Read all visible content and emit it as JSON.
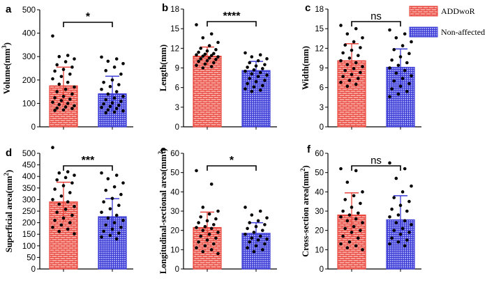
{
  "legend": {
    "items": [
      {
        "name": "ADDwoR",
        "pattern": "brick",
        "color": "#E8453C"
      },
      {
        "name": "Non-affected",
        "pattern": "grid",
        "color": "#3B3BD6"
      }
    ]
  },
  "chart_data": [
    {
      "panel": "a",
      "type": "bar",
      "ylabel": "Volume(mm³)",
      "ylabel_main": "Volume(mm",
      "ylabel_sup": "3",
      "ylabel_end": ")",
      "ylim": [
        0,
        500
      ],
      "yticks": [
        0,
        100,
        200,
        300,
        400,
        500
      ],
      "ytick_labels": [
        "0",
        "100",
        "200",
        "300",
        "400",
        "500"
      ],
      "significance": "*",
      "categories": [
        "ADDwoR",
        "Non-affected"
      ],
      "values": [
        175,
        141
      ],
      "sd": [
        80,
        75
      ],
      "points": [
        [
          388,
          305,
          300,
          290,
          278,
          265,
          255,
          245,
          238,
          225,
          215,
          205,
          190,
          182,
          170,
          160,
          150,
          140,
          130,
          124,
          118,
          112,
          105,
          100,
          95,
          90,
          85,
          80,
          78,
          72,
          70
        ],
        [
          298,
          290,
          280,
          270,
          255,
          240,
          225,
          200,
          190,
          180,
          172,
          160,
          150,
          140,
          130,
          123,
          116,
          109,
          102,
          98,
          92,
          87,
          83,
          78,
          72,
          68,
          63,
          60
        ]
      ]
    },
    {
      "panel": "b",
      "type": "bar",
      "ylabel": "Length(mm)",
      "ylabel_main": "Length(mm)",
      "ylabel_sup": "",
      "ylabel_end": "",
      "ylim": [
        0,
        18
      ],
      "yticks": [
        0,
        3,
        6,
        9,
        12,
        15,
        18
      ],
      "ytick_labels": [
        "0",
        "3",
        "6",
        "9",
        "12",
        "15",
        "18"
      ],
      "significance": "****",
      "categories": [
        "ADDwoR",
        "Non-affected"
      ],
      "values": [
        10.8,
        8.6
      ],
      "sd": [
        1.4,
        1.4
      ],
      "points": [
        [
          15.6,
          14.2,
          13.6,
          12.9,
          12.4,
          12.0,
          11.8,
          11.6,
          11.4,
          11.2,
          11.1,
          11.0,
          10.9,
          10.8,
          10.7,
          10.5,
          10.4,
          10.3,
          10.1,
          10.0,
          9.8,
          9.6,
          9.4,
          9.2,
          9.0
        ],
        [
          11.3,
          11.0,
          10.7,
          10.4,
          10.1,
          9.8,
          9.5,
          9.3,
          9.1,
          8.9,
          8.7,
          8.5,
          8.3,
          8.1,
          7.9,
          7.7,
          7.4,
          7.1,
          6.9,
          6.6,
          6.3,
          6.1,
          5.8,
          5.6,
          5.4
        ]
      ]
    },
    {
      "panel": "c",
      "type": "bar",
      "ylabel": "Width(mm)",
      "ylabel_main": "Width(mm)",
      "ylabel_sup": "",
      "ylabel_end": "",
      "ylim": [
        0,
        18
      ],
      "yticks": [
        0,
        3,
        6,
        9,
        12,
        15,
        18
      ],
      "ytick_labels": [
        "0",
        "3",
        "6",
        "9",
        "12",
        "15",
        "18"
      ],
      "significance": "ns",
      "categories": [
        "ADDwoR",
        "Non-affected"
      ],
      "values": [
        10.1,
        9.1
      ],
      "sd": [
        2.6,
        2.8
      ],
      "points": [
        [
          15.5,
          15.0,
          14.2,
          13.6,
          13.0,
          12.5,
          12.1,
          11.7,
          11.3,
          10.9,
          10.5,
          10.1,
          9.8,
          9.5,
          9.2,
          8.9,
          8.6,
          8.3,
          8.0,
          7.7,
          7.4,
          7.1,
          6.8,
          6.5,
          6.2
        ],
        [
          14.8,
          14.2,
          13.6,
          13.0,
          12.4,
          11.8,
          11.2,
          10.7,
          10.2,
          9.8,
          9.4,
          9.0,
          8.6,
          8.2,
          7.8,
          7.4,
          7.0,
          6.6,
          6.2,
          5.8,
          5.4,
          5.0,
          4.6
        ]
      ]
    },
    {
      "panel": "d",
      "type": "bar",
      "ylabel": "Superficial area(mm²)",
      "ylabel_main": "Superficial area(mm",
      "ylabel_sup": "2",
      "ylabel_end": ")",
      "ylim": [
        0,
        500
      ],
      "yticks": [
        0,
        50,
        100,
        150,
        200,
        250,
        300,
        350,
        400,
        450,
        500
      ],
      "ytick_labels": [
        "0",
        "50",
        "100",
        "150",
        "200",
        "250",
        "300",
        "350",
        "400",
        "450",
        "500"
      ],
      "significance": "***",
      "categories": [
        "ADDwoR",
        "Non-affected"
      ],
      "values": [
        290,
        226
      ],
      "sd": [
        85,
        78
      ],
      "points": [
        [
          525,
          420,
          415,
          405,
          395,
          385,
          372,
          360,
          345,
          330,
          315,
          300,
          290,
          280,
          270,
          258,
          245,
          232,
          220,
          210,
          200,
          190,
          180,
          172,
          162,
          152
        ],
        [
          415,
          405,
          390,
          372,
          355,
          340,
          322,
          305,
          290,
          275,
          260,
          245,
          232,
          220,
          210,
          200,
          190,
          180,
          172,
          163,
          155,
          145,
          138,
          130
        ]
      ]
    },
    {
      "panel": "e",
      "type": "bar",
      "ylabel": "Longitudinal-sectional area(mm²)",
      "ylabel_main": "Longitudinal-sectional area(mm",
      "ylabel_sup": "2",
      "ylabel_end": ")",
      "ylim": [
        0,
        60
      ],
      "yticks": [
        0,
        10,
        20,
        30,
        40,
        50,
        60
      ],
      "ytick_labels": [
        "0",
        "10",
        "20",
        "30",
        "40",
        "50",
        "60"
      ],
      "significance": "*",
      "categories": [
        "ADDwoR",
        "Non-affected"
      ],
      "values": [
        21.5,
        18.5
      ],
      "sd": [
        8.0,
        5.5
      ],
      "points": [
        [
          51,
          44,
          32,
          30,
          28.5,
          27,
          26,
          25,
          24,
          23,
          22,
          21.5,
          21,
          20,
          19,
          18,
          17,
          16,
          15,
          14,
          13,
          12,
          11,
          10,
          9,
          8
        ],
        [
          32,
          30,
          28,
          26.5,
          25,
          24,
          23,
          22,
          21,
          20,
          19,
          18,
          17,
          16,
          15.5,
          15,
          14,
          13,
          12,
          11,
          10,
          9
        ]
      ]
    },
    {
      "panel": "f",
      "type": "bar",
      "ylabel": "Cross-section area(mm²)",
      "ylabel_main": "Cross-section area(mm",
      "ylabel_sup": "2",
      "ylabel_end": ")",
      "ylim": [
        0,
        60
      ],
      "yticks": [
        0,
        10,
        20,
        30,
        40,
        50,
        60
      ],
      "ytick_labels": [
        "0",
        "10",
        "20",
        "30",
        "40",
        "50",
        "60"
      ],
      "significance": "ns",
      "categories": [
        "ADDwoR",
        "Non-affected"
      ],
      "values": [
        28,
        25.5
      ],
      "sd": [
        11.5,
        12.5
      ],
      "points": [
        [
          52,
          51,
          45,
          40,
          38,
          36,
          34,
          32,
          30,
          29,
          28,
          27,
          26,
          25,
          24,
          22,
          21,
          20,
          19,
          17,
          16,
          14,
          13,
          12,
          11,
          10
        ],
        [
          55,
          52,
          47,
          43,
          40,
          37,
          35,
          33,
          31,
          30,
          28,
          27,
          25,
          24,
          23,
          21,
          20,
          19,
          18,
          16,
          15,
          14,
          13,
          12
        ]
      ]
    }
  ]
}
